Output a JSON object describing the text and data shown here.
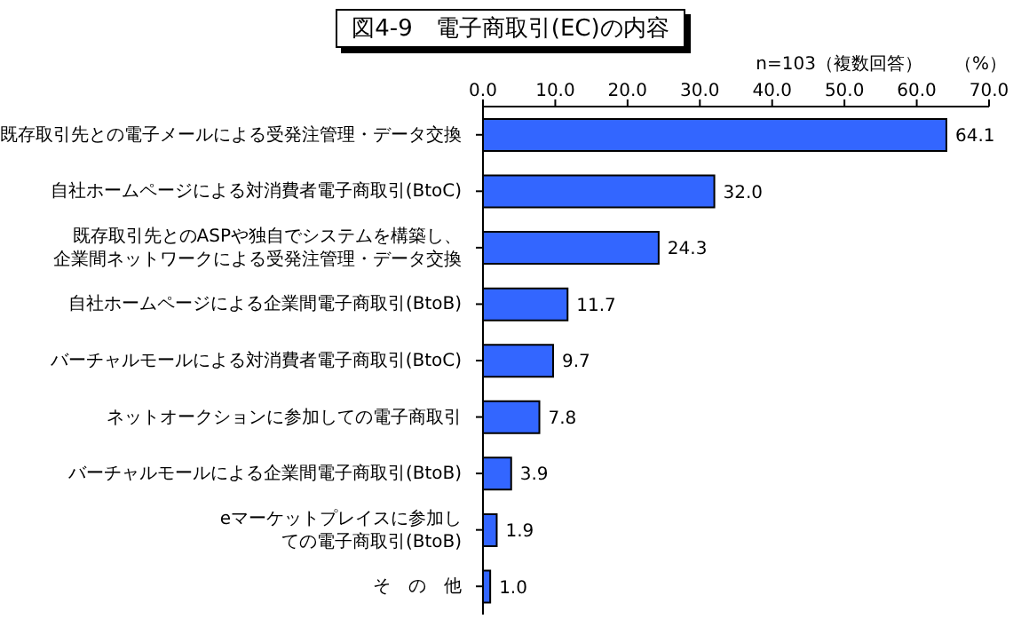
{
  "chart_data": {
    "type": "bar",
    "orientation": "horizontal",
    "title": "図4-9　電子商取引(EC)の内容",
    "annotations": [
      "n=103（複数回答）",
      "（%）"
    ],
    "categories": [
      "既存取引先との電子メールによる受発注管理・データ交換",
      "自社ホームページによる対消費者電子商取引(BtoC)",
      "既存取引先とのASPや独自でシステムを構築し、企業間ネットワークによる受発注管理・データ交換",
      "自社ホームページによる企業間電子商取引(BtoB)",
      "バーチャルモールによる対消費者電子商取引(BtoC)",
      "ネットオークションに参加しての電子商取引",
      "バーチャルモールによる企業間電子商取引(BtoB)",
      "eマーケットプレイスに参加しての電子商取引(BtoB)",
      "そ　の　他"
    ],
    "values": [
      64.1,
      32.0,
      24.3,
      11.7,
      9.7,
      7.8,
      3.9,
      1.9,
      1.0
    ],
    "value_labels": [
      "64.1",
      "32.0",
      "24.3",
      "11.7",
      "9.7",
      "7.8",
      "3.9",
      "1.9",
      "1.0"
    ],
    "color": "#3366ff",
    "xlim": [
      0,
      70
    ],
    "xticks": [
      {
        "value": 0,
        "label": "0.0"
      },
      {
        "value": 10,
        "label": "10.0"
      },
      {
        "value": 20,
        "label": "20.0"
      },
      {
        "value": 30,
        "label": "30.0"
      },
      {
        "value": 40,
        "label": "40.0"
      },
      {
        "value": 50,
        "label": "50.0"
      },
      {
        "value": 60,
        "label": "60.0"
      },
      {
        "value": 70,
        "label": "70.0"
      }
    ],
    "grid": false,
    "legend": false
  }
}
